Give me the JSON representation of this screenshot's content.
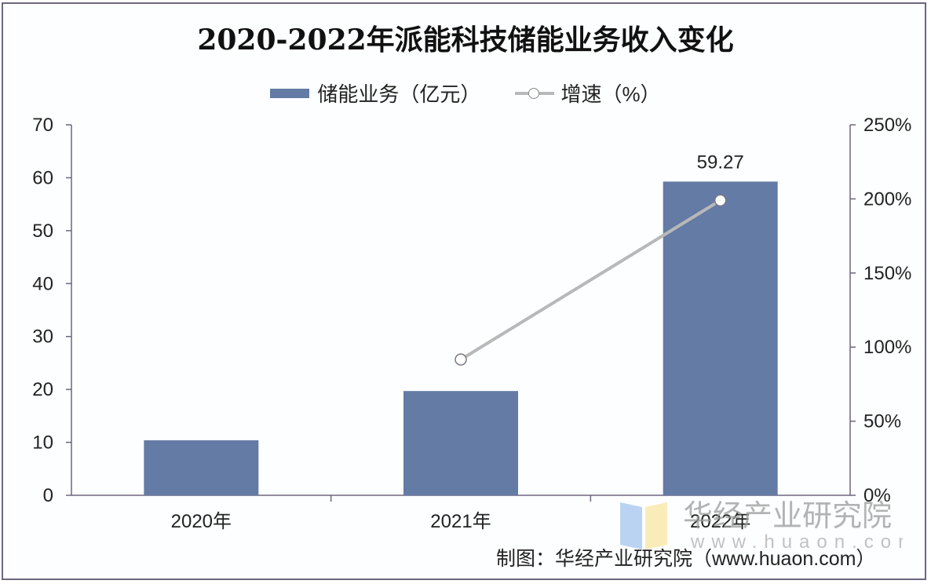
{
  "title": "2020-2022年派能科技储能业务收入变化",
  "legend": {
    "bar_label": "储能业务（亿元）",
    "line_label": "增速（%）"
  },
  "axes": {
    "left_ticks": [
      "0",
      "10",
      "20",
      "30",
      "40",
      "50",
      "60",
      "70"
    ],
    "right_ticks": [
      "0%",
      "50%",
      "100%",
      "150%",
      "200%",
      "250%"
    ],
    "x_ticks": [
      "2020年",
      "2021年",
      "2022年"
    ]
  },
  "data_labels": {
    "bar_2022": "59.27"
  },
  "watermark": {
    "name": "华经产业研究院",
    "url": "www.huaon.com"
  },
  "source": "制图：华经产业研究院（www.huaon.com）",
  "colors": {
    "bar": "#637ba5",
    "line": "#b8b8b8",
    "marker_stroke": "#7a7485",
    "axis": "#6e6580"
  },
  "chart_data": {
    "type": "bar",
    "title": "2020-2022年派能科技储能业务收入变化",
    "categories": [
      "2020年",
      "2021年",
      "2022年"
    ],
    "series": [
      {
        "name": "储能业务（亿元）",
        "type": "bar",
        "axis": "left",
        "values": [
          10.4,
          19.7,
          59.27
        ]
      },
      {
        "name": "增速（%）",
        "type": "line",
        "axis": "right",
        "values": [
          null,
          91.6,
          199.0
        ]
      }
    ],
    "xlabel": "",
    "ylabel": "",
    "ylim": [
      0,
      70
    ],
    "y2lim": [
      0,
      250
    ],
    "yticks": [
      0,
      10,
      20,
      30,
      40,
      50,
      60,
      70
    ],
    "y2ticks": [
      "0%",
      "50%",
      "100%",
      "150%",
      "200%",
      "250%"
    ],
    "annotations": [
      "59.27"
    ],
    "grid": false,
    "legend_position": "top"
  }
}
